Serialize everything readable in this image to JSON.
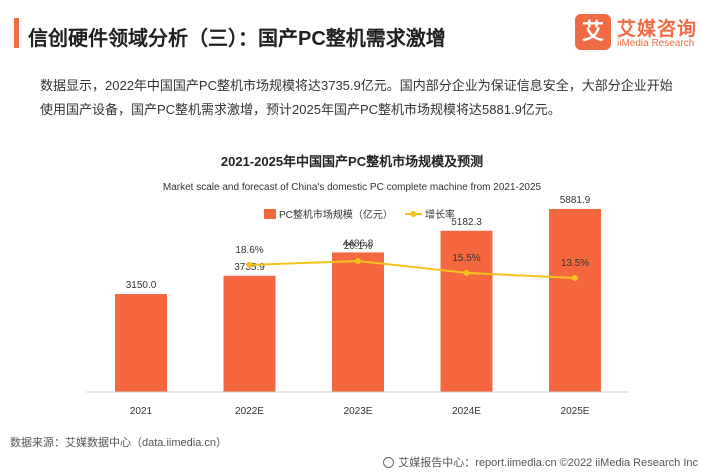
{
  "header": {
    "title": "信创硬件领域分析（三）：国产PC整机需求激增"
  },
  "logo": {
    "badge_glyph": "艾",
    "cn_name": "艾媒咨询",
    "en_name": "iiMedia Research"
  },
  "intro": {
    "text": "数据显示，2022年中国国产PC整机市场规模将达3735.9亿元。国内部分企业为保证信息安全，大部分企业开始使用国产设备，国产PC整机需求激增，预计2025年国产PC整机市场规模将达5881.9亿元。"
  },
  "chart_data": {
    "type": "bar",
    "title": "2021-2025年中国国产PC整机市场规模及预测",
    "subtitle": "Market scale and forecast of China's domestic PC complete machine from 2021-2025",
    "categories": [
      "2021",
      "2022E",
      "2023E",
      "2024E",
      "2025E"
    ],
    "series": [
      {
        "name": "PC整机市场规模（亿元）",
        "type": "bar",
        "color": "#f5673e",
        "values": [
          3150.0,
          3735.9,
          4486.8,
          5182.3,
          5881.9
        ],
        "labels": [
          "3150.0",
          "3735.9",
          "4486.8",
          "5182.3",
          "5881.9"
        ]
      },
      {
        "name": "增长率",
        "type": "line",
        "color": "#f4c21a",
        "values": [
          null,
          18.6,
          20.1,
          15.5,
          13.5
        ],
        "labels": [
          "",
          "18.6%",
          "20.1%",
          "15.5%",
          "13.5%"
        ]
      }
    ],
    "grid": false,
    "legend_position": "top-center"
  },
  "footer": {
    "source": "数据来源：艾媒数据中心（data.iimedia.cn）",
    "copyright": "艾媒报告中心：report.iimedia.cn  ©2022  iiMedia Research  Inc"
  }
}
